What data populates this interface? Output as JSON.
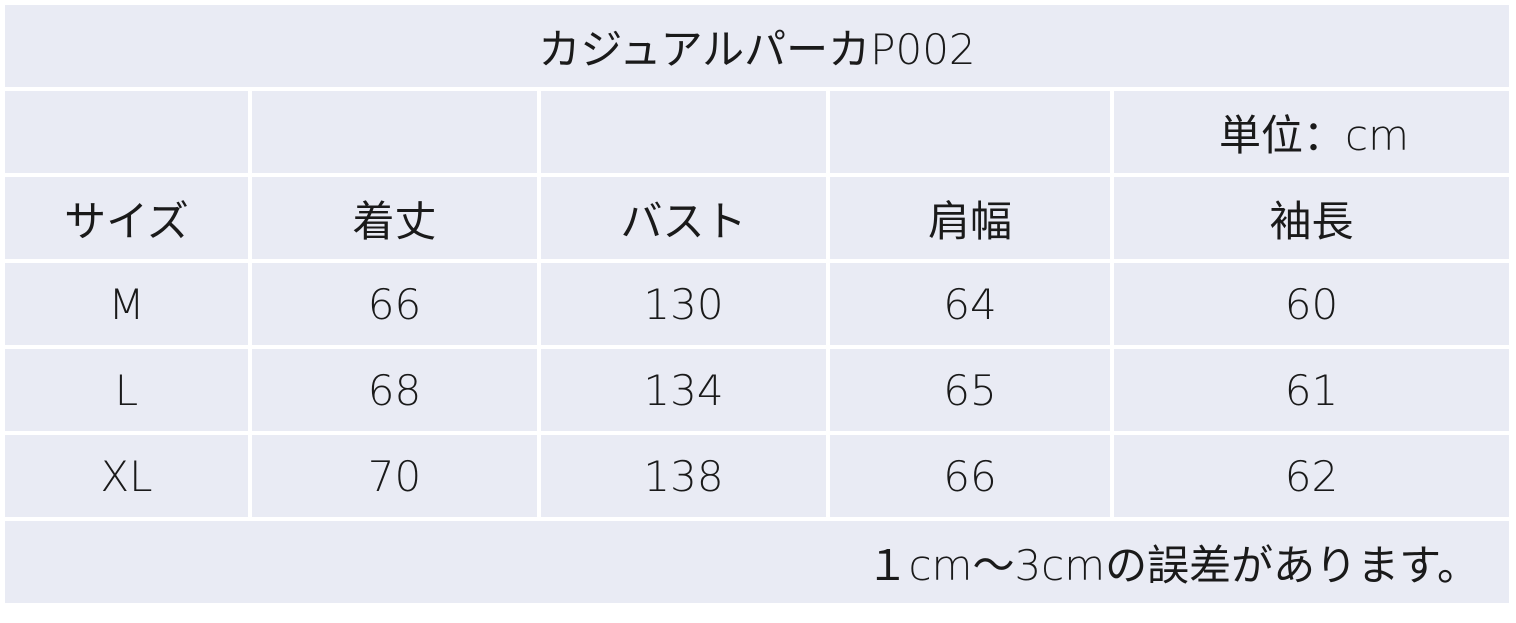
{
  "title": "カジュアルパーカP002",
  "unit": "単位：cm",
  "headers": [
    "サイズ",
    "着丈",
    "バスト",
    "肩幅",
    "袖長"
  ],
  "rows": [
    [
      "M",
      "66",
      "130",
      "64",
      "60"
    ],
    [
      "L",
      "68",
      "134",
      "65",
      "61"
    ],
    [
      "XL",
      "70",
      "138",
      "66",
      "62"
    ]
  ],
  "note": "１cm〜3cmの誤差があります。",
  "colors": {
    "cell_background": "#e9ebf4",
    "grid_lines": "#ffffff"
  }
}
